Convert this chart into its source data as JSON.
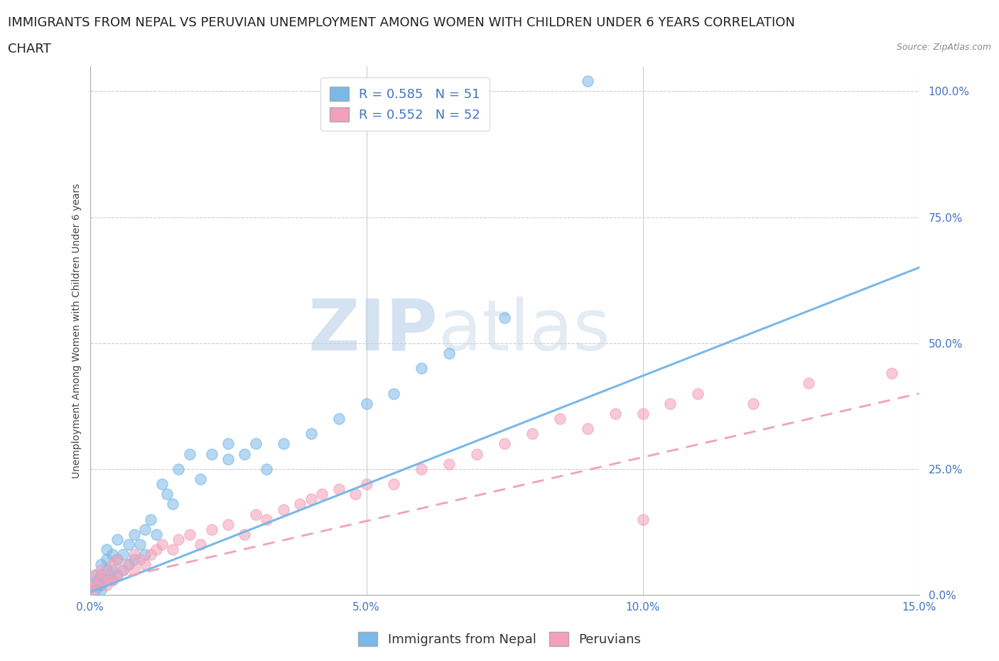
{
  "title_line1": "IMMIGRANTS FROM NEPAL VS PERUVIAN UNEMPLOYMENT AMONG WOMEN WITH CHILDREN UNDER 6 YEARS CORRELATION",
  "title_line2": "CHART",
  "source": "Source: ZipAtlas.com",
  "ylabel": "Unemployment Among Women with Children Under 6 years",
  "x_min": 0.0,
  "x_max": 0.15,
  "y_min": 0.0,
  "y_max": 1.05,
  "x_ticks": [
    0.0,
    0.05,
    0.1,
    0.15
  ],
  "x_tick_labels": [
    "0.0%",
    "5.0%",
    "10.0%",
    "15.0%"
  ],
  "y_ticks": [
    0.0,
    0.25,
    0.5,
    0.75,
    1.0
  ],
  "y_tick_labels": [
    "0.0%",
    "25.0%",
    "50.0%",
    "75.0%",
    "100.0%"
  ],
  "nepal_color": "#7ab8e8",
  "peru_color": "#f4a0b8",
  "nepal_R": 0.585,
  "nepal_N": 51,
  "peru_R": 0.552,
  "peru_N": 52,
  "nepal_scatter_x": [
    0.0005,
    0.001,
    0.001,
    0.0015,
    0.0015,
    0.002,
    0.002,
    0.002,
    0.002,
    0.003,
    0.003,
    0.003,
    0.003,
    0.004,
    0.004,
    0.004,
    0.005,
    0.005,
    0.005,
    0.006,
    0.006,
    0.007,
    0.007,
    0.008,
    0.008,
    0.009,
    0.01,
    0.01,
    0.011,
    0.012,
    0.013,
    0.014,
    0.015,
    0.016,
    0.018,
    0.02,
    0.022,
    0.025,
    0.025,
    0.028,
    0.03,
    0.032,
    0.035,
    0.04,
    0.045,
    0.05,
    0.055,
    0.06,
    0.065,
    0.075,
    0.09
  ],
  "nepal_scatter_y": [
    0.02,
    0.01,
    0.04,
    0.02,
    0.03,
    0.01,
    0.02,
    0.04,
    0.06,
    0.03,
    0.05,
    0.07,
    0.09,
    0.03,
    0.05,
    0.08,
    0.04,
    0.07,
    0.11,
    0.05,
    0.08,
    0.06,
    0.1,
    0.07,
    0.12,
    0.1,
    0.08,
    0.13,
    0.15,
    0.12,
    0.22,
    0.2,
    0.18,
    0.25,
    0.28,
    0.23,
    0.28,
    0.27,
    0.3,
    0.28,
    0.3,
    0.25,
    0.3,
    0.32,
    0.35,
    0.38,
    0.4,
    0.45,
    0.48,
    0.55,
    1.02
  ],
  "peru_scatter_x": [
    0.0005,
    0.001,
    0.001,
    0.002,
    0.002,
    0.003,
    0.003,
    0.004,
    0.004,
    0.005,
    0.005,
    0.006,
    0.007,
    0.008,
    0.008,
    0.009,
    0.01,
    0.011,
    0.012,
    0.013,
    0.015,
    0.016,
    0.018,
    0.02,
    0.022,
    0.025,
    0.028,
    0.03,
    0.032,
    0.035,
    0.038,
    0.04,
    0.042,
    0.045,
    0.048,
    0.05,
    0.055,
    0.06,
    0.065,
    0.07,
    0.075,
    0.08,
    0.085,
    0.09,
    0.095,
    0.1,
    0.1,
    0.105,
    0.11,
    0.12,
    0.13,
    0.145
  ],
  "peru_scatter_y": [
    0.01,
    0.02,
    0.04,
    0.03,
    0.05,
    0.02,
    0.04,
    0.03,
    0.06,
    0.04,
    0.07,
    0.05,
    0.06,
    0.05,
    0.08,
    0.07,
    0.06,
    0.08,
    0.09,
    0.1,
    0.09,
    0.11,
    0.12,
    0.1,
    0.13,
    0.14,
    0.12,
    0.16,
    0.15,
    0.17,
    0.18,
    0.19,
    0.2,
    0.21,
    0.2,
    0.22,
    0.22,
    0.25,
    0.26,
    0.28,
    0.3,
    0.32,
    0.35,
    0.33,
    0.36,
    0.15,
    0.36,
    0.38,
    0.4,
    0.38,
    0.42,
    0.44
  ],
  "nepal_line_x": [
    0.0,
    0.15
  ],
  "nepal_line_y": [
    0.005,
    0.65
  ],
  "peru_line_x": [
    0.0,
    0.15
  ],
  "peru_line_y": [
    0.02,
    0.4
  ],
  "watermark_zip": "ZIP",
  "watermark_atlas": "atlas",
  "background_color": "#ffffff",
  "grid_color": "#cccccc",
  "title_fontsize": 13,
  "axis_label_fontsize": 10,
  "tick_fontsize": 11,
  "legend_fontsize": 13,
  "source_fontsize": 9
}
